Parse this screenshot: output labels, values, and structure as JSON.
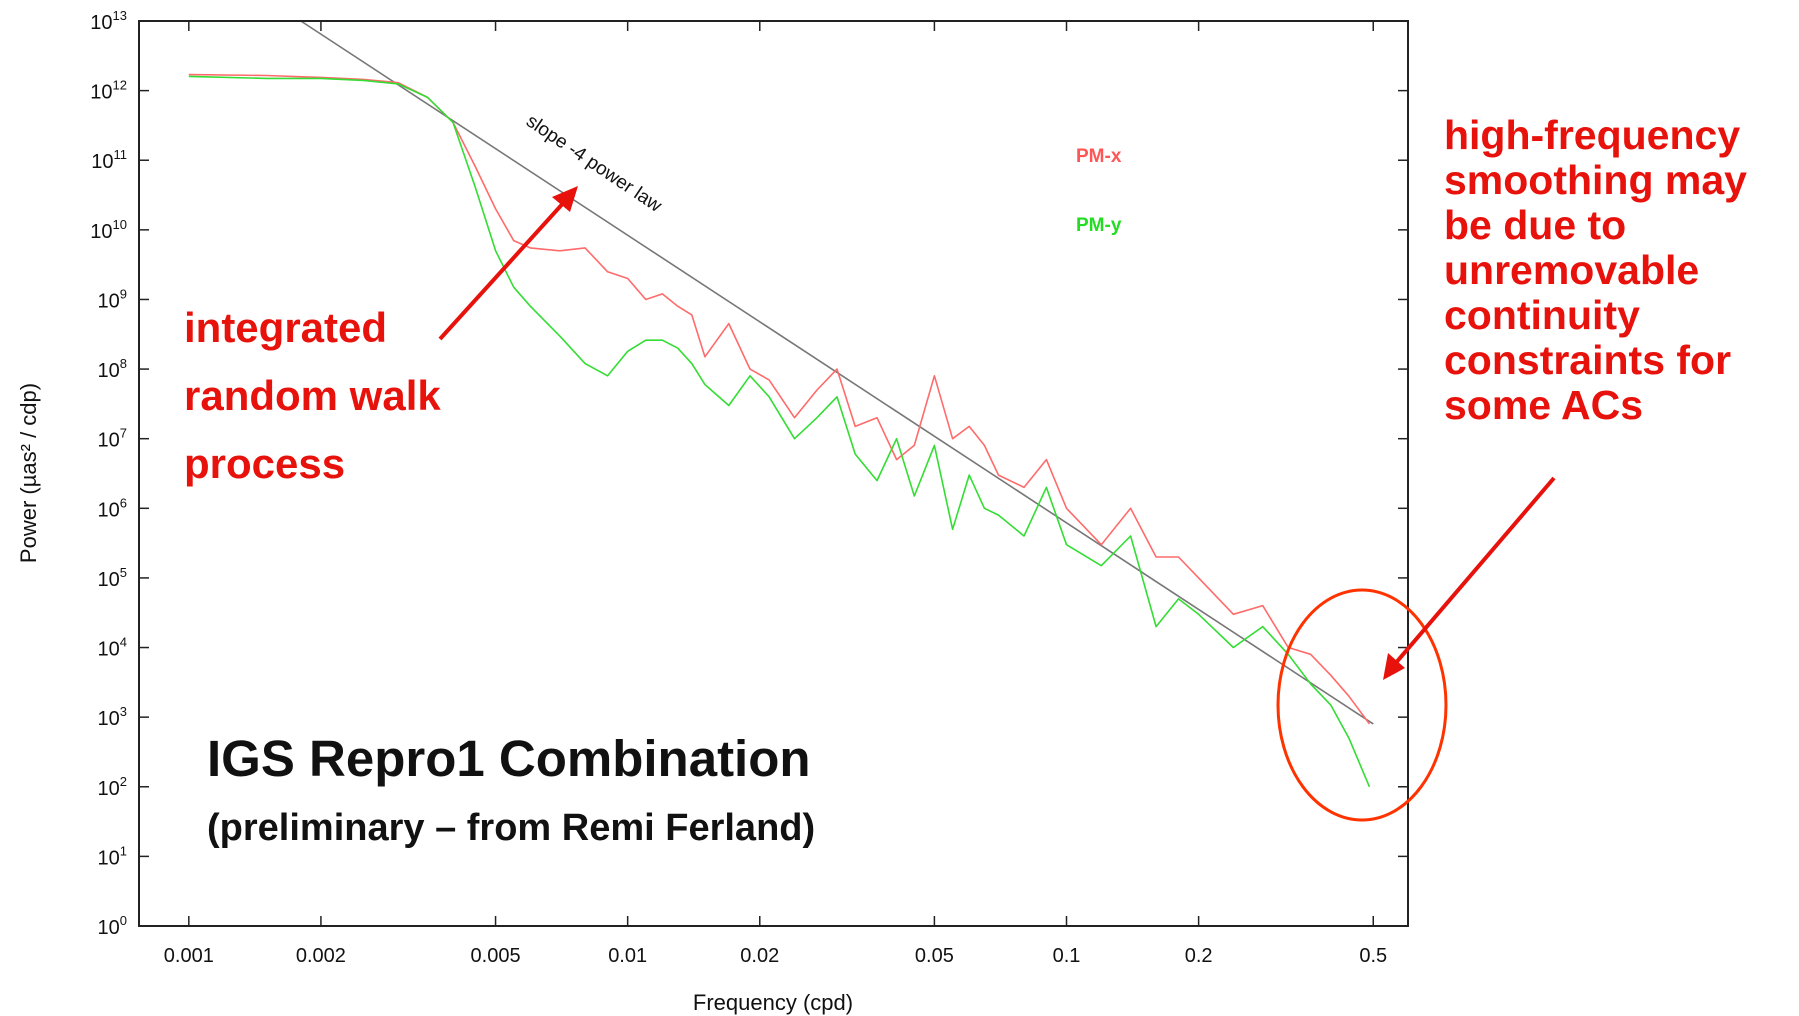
{
  "chart_data": {
    "type": "line",
    "xlabel": "Frequency (cpd)",
    "ylabel": "Power (µas² / cdp)",
    "xscale": "log",
    "yscale": "log",
    "xlim": [
      0.00077,
      0.6
    ],
    "ylim": [
      1,
      10000000000000
    ],
    "x_ticks": [
      0.001,
      0.002,
      0.005,
      0.01,
      0.02,
      0.05,
      0.1,
      0.2,
      0.5
    ],
    "x_tick_labels": [
      "0.001",
      "0.002",
      "0.005",
      "0.01",
      "0.02",
      "0.05",
      "0.1",
      "0.2",
      "0.5"
    ],
    "y_tick_exponents": [
      "0",
      "1",
      "2",
      "3",
      "4",
      "5",
      "6",
      "7",
      "8",
      "9",
      "10",
      "11",
      "12",
      "13"
    ],
    "grid": false,
    "legend_position": "top-right",
    "series": [
      {
        "name": "PM-x",
        "color": "#ff6b6b",
        "x": [
          0.001,
          0.0015,
          0.002,
          0.0025,
          0.003,
          0.0035,
          0.004,
          0.0045,
          0.005,
          0.0055,
          0.006,
          0.007,
          0.008,
          0.009,
          0.01,
          0.011,
          0.012,
          0.013,
          0.014,
          0.015,
          0.017,
          0.019,
          0.021,
          0.024,
          0.027,
          0.03,
          0.033,
          0.037,
          0.041,
          0.045,
          0.05,
          0.055,
          0.06,
          0.065,
          0.07,
          0.08,
          0.09,
          0.1,
          0.12,
          0.14,
          0.16,
          0.18,
          0.2,
          0.24,
          0.28,
          0.32,
          0.36,
          0.4,
          0.44,
          0.49
        ],
        "y": [
          1700000000000,
          1650000000000,
          1550000000000,
          1450000000000,
          1300000000000,
          800000000000,
          350000000000,
          80000000000,
          20000000000,
          7000000000,
          5500000000,
          5000000000,
          5500000000,
          2500000000,
          2000000000,
          1000000000,
          1200000000,
          800000000,
          600000000,
          150000000,
          450000000,
          100000000,
          70000000,
          20000000,
          50000000,
          100000000,
          15000000,
          20000000,
          5000000,
          8000000,
          80000000,
          10000000,
          15000000,
          8000000,
          3000000,
          2000000,
          5000000,
          1000000,
          300000,
          1000000,
          200000,
          200000,
          100000,
          30000,
          40000,
          10000,
          8000,
          4000,
          2000,
          800
        ]
      },
      {
        "name": "PM-y",
        "color": "#33dd33",
        "x": [
          0.001,
          0.0015,
          0.002,
          0.0025,
          0.003,
          0.0035,
          0.004,
          0.0045,
          0.005,
          0.0055,
          0.006,
          0.007,
          0.008,
          0.009,
          0.01,
          0.011,
          0.012,
          0.013,
          0.014,
          0.015,
          0.017,
          0.019,
          0.021,
          0.024,
          0.027,
          0.03,
          0.033,
          0.037,
          0.041,
          0.045,
          0.05,
          0.055,
          0.06,
          0.065,
          0.07,
          0.08,
          0.09,
          0.1,
          0.12,
          0.14,
          0.16,
          0.18,
          0.2,
          0.24,
          0.28,
          0.32,
          0.36,
          0.4,
          0.44,
          0.49
        ],
        "y": [
          1600000000000,
          1500000000000,
          1500000000000,
          1400000000000,
          1250000000000,
          800000000000,
          350000000000,
          40000000000,
          5000000000,
          1500000000,
          800000000,
          300000000,
          120000000,
          80000000,
          180000000,
          260000000,
          260000000,
          200000000,
          120000000,
          60000000,
          30000000,
          80000000,
          40000000,
          10000000,
          20000000,
          40000000,
          6000000,
          2500000,
          10000000,
          1500000,
          8000000,
          500000,
          3000000,
          1000000,
          800000,
          400000,
          2000000,
          300000,
          150000,
          400000,
          20000,
          50000,
          30000,
          10000,
          20000,
          8000,
          3000,
          1500,
          500,
          100
        ]
      }
    ],
    "reference_line": {
      "label": "slope -4 power law",
      "color": "#777777",
      "x": [
        0.0018,
        0.5
      ],
      "y": [
        10000000000000,
        800
      ]
    }
  },
  "annotations": {
    "left_lines": [
      "integrated",
      "random walk",
      "process"
    ],
    "right_lines": [
      "high-frequency",
      "smoothing may",
      "be due to",
      "unremovable",
      "continuity",
      "constraints for",
      "some ACs"
    ],
    "caption_title": "IGS Repro1 Combination",
    "caption_sub": "(preliminary – from Remi Ferland)",
    "annotation_color": "#e8120c"
  }
}
